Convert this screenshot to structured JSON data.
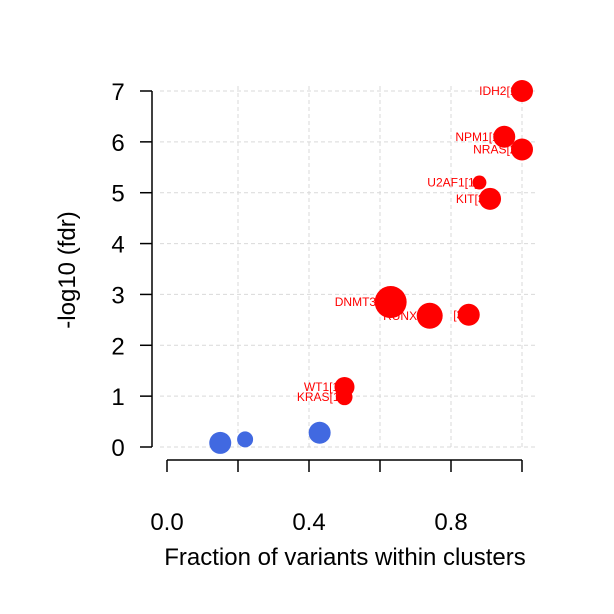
{
  "chart_data": {
    "type": "scatter",
    "xlabel": "Fraction of variants within clusters",
    "ylabel": "-log10 (fdr)",
    "xlim": [
      0,
      1
    ],
    "ylim": [
      0,
      7
    ],
    "x_ticks": [
      0,
      0.2,
      0.4,
      0.6,
      0.8,
      1.0
    ],
    "x_tick_labels": [
      "0.0",
      "",
      "0.4",
      "",
      "0.8",
      ""
    ],
    "y_ticks": [
      0,
      1,
      2,
      3,
      4,
      5,
      6,
      7
    ],
    "y_tick_labels": [
      "0",
      "1",
      "2",
      "3",
      "4",
      "5",
      "6",
      "7"
    ],
    "grid": true,
    "colors": {
      "significant": "#ff0000",
      "not_significant": "#4169e1",
      "grid": "#d9d9d9"
    },
    "points": [
      {
        "label": "IDH2[1]",
        "x": 1.0,
        "y": 7.0,
        "size": 11,
        "color": "#ff0000"
      },
      {
        "label": "NPM1[1]",
        "x": 0.95,
        "y": 6.1,
        "size": 11,
        "color": "#ff0000"
      },
      {
        "label": "NRAS[2]",
        "x": 1.0,
        "y": 5.85,
        "size": 11,
        "color": "#ff0000"
      },
      {
        "label": "U2AF1[1]",
        "x": 0.88,
        "y": 5.2,
        "size": 7,
        "color": "#ff0000"
      },
      {
        "label": "KIT[3]",
        "x": 0.91,
        "y": 4.88,
        "size": 11,
        "color": "#ff0000"
      },
      {
        "label": "DNMT3A[",
        "x": 0.63,
        "y": 2.85,
        "size": 16,
        "color": "#ff0000"
      },
      {
        "label": "RUNX1[",
        "x": 0.74,
        "y": 2.58,
        "size": 13,
        "color": "#ff0000"
      },
      {
        "label": "[3]",
        "x": 0.85,
        "y": 2.6,
        "size": 11,
        "color": "#ff0000"
      },
      {
        "label": "WT1[1]",
        "x": 0.5,
        "y": 1.18,
        "size": 10,
        "color": "#ff0000"
      },
      {
        "label": "KRAS[1]",
        "x": 0.5,
        "y": 0.98,
        "size": 8,
        "color": "#ff0000"
      },
      {
        "label": "",
        "x": 0.43,
        "y": 0.28,
        "size": 11,
        "color": "#4169e1"
      },
      {
        "label": "",
        "x": 0.22,
        "y": 0.15,
        "size": 8,
        "color": "#4169e1"
      },
      {
        "label": "",
        "x": 0.15,
        "y": 0.08,
        "size": 11,
        "color": "#4169e1"
      }
    ]
  }
}
